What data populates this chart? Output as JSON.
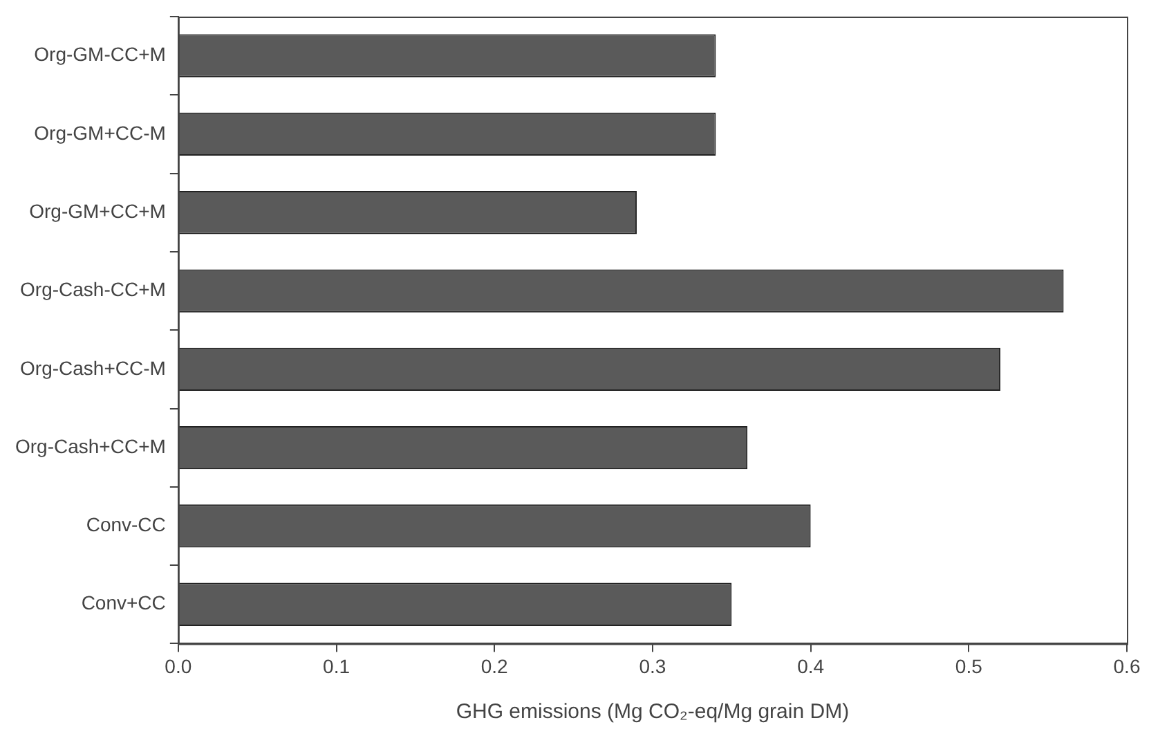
{
  "chart_data": {
    "type": "bar",
    "orientation": "horizontal",
    "xlabel": "GHG emissions (Mg CO₂-eq/Mg grain DM)",
    "categories": [
      "Org-GM-CC+M",
      "Org-GM+CC-M",
      "Org-GM+CC+M",
      "Org-Cash-CC+M",
      "Org-Cash+CC-M",
      "Org-Cash+CC+M",
      "Conv-CC",
      "Conv+CC"
    ],
    "values": [
      0.34,
      0.34,
      0.29,
      0.56,
      0.52,
      0.36,
      0.4,
      0.35
    ],
    "color": "#5a5a5a",
    "xlim": [
      0,
      0.6
    ],
    "xticks": [
      {
        "value": 0,
        "label": "0.0"
      },
      0.1,
      0.2,
      0.3,
      0.4,
      0.5,
      0.6
    ],
    "grid": false,
    "legend": false
  }
}
